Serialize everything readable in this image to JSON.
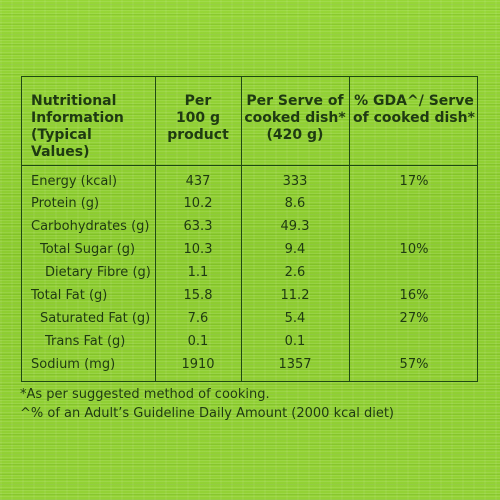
{
  "headers": {
    "col1": [
      "Nutritional",
      "Information",
      "(Typical Values)"
    ],
    "col2": [
      "Per",
      "100 g",
      "product"
    ],
    "col3": [
      "Per Serve of",
      "cooked dish*",
      "(420 g)"
    ],
    "col4": [
      "% GDA^/ Serve",
      "of cooked dish*"
    ]
  },
  "rows": [
    {
      "label": "Energy (kcal)",
      "per100": "437",
      "perServe": "333",
      "gda": "17%"
    },
    {
      "label": "Protein (g)",
      "per100": "10.2",
      "perServe": "8.6",
      "gda": ""
    },
    {
      "label": "Carbohydrates (g)",
      "per100": "63.3",
      "perServe": "49.3",
      "gda": ""
    },
    {
      "label": "Total Sugar (g)",
      "per100": "10.3",
      "perServe": "9.4",
      "gda": "10%"
    },
    {
      "label": "Dietary Fibre (g)",
      "per100": "1.1",
      "perServe": "2.6",
      "gda": ""
    },
    {
      "label": "Total Fat (g)",
      "per100": "15.8",
      "perServe": "11.2",
      "gda": "16%"
    },
    {
      "label": "Saturated Fat (g)",
      "per100": "7.6",
      "perServe": "5.4",
      "gda": "27%"
    },
    {
      "label": "Trans Fat (g)",
      "per100": "0.1",
      "perServe": "0.1",
      "gda": ""
    },
    {
      "label": "Sodium (mg)",
      "per100": "1910",
      "perServe": "1357",
      "gda": "57%"
    }
  ],
  "footnotes": [
    "*As per suggested method of cooking.",
    "^% of an Adult’s Guideline Daily Amount (2000 kcal diet)"
  ],
  "colors": {
    "background": "#8fd031",
    "text": "#1f3a12",
    "rules": "#1f4a12"
  }
}
